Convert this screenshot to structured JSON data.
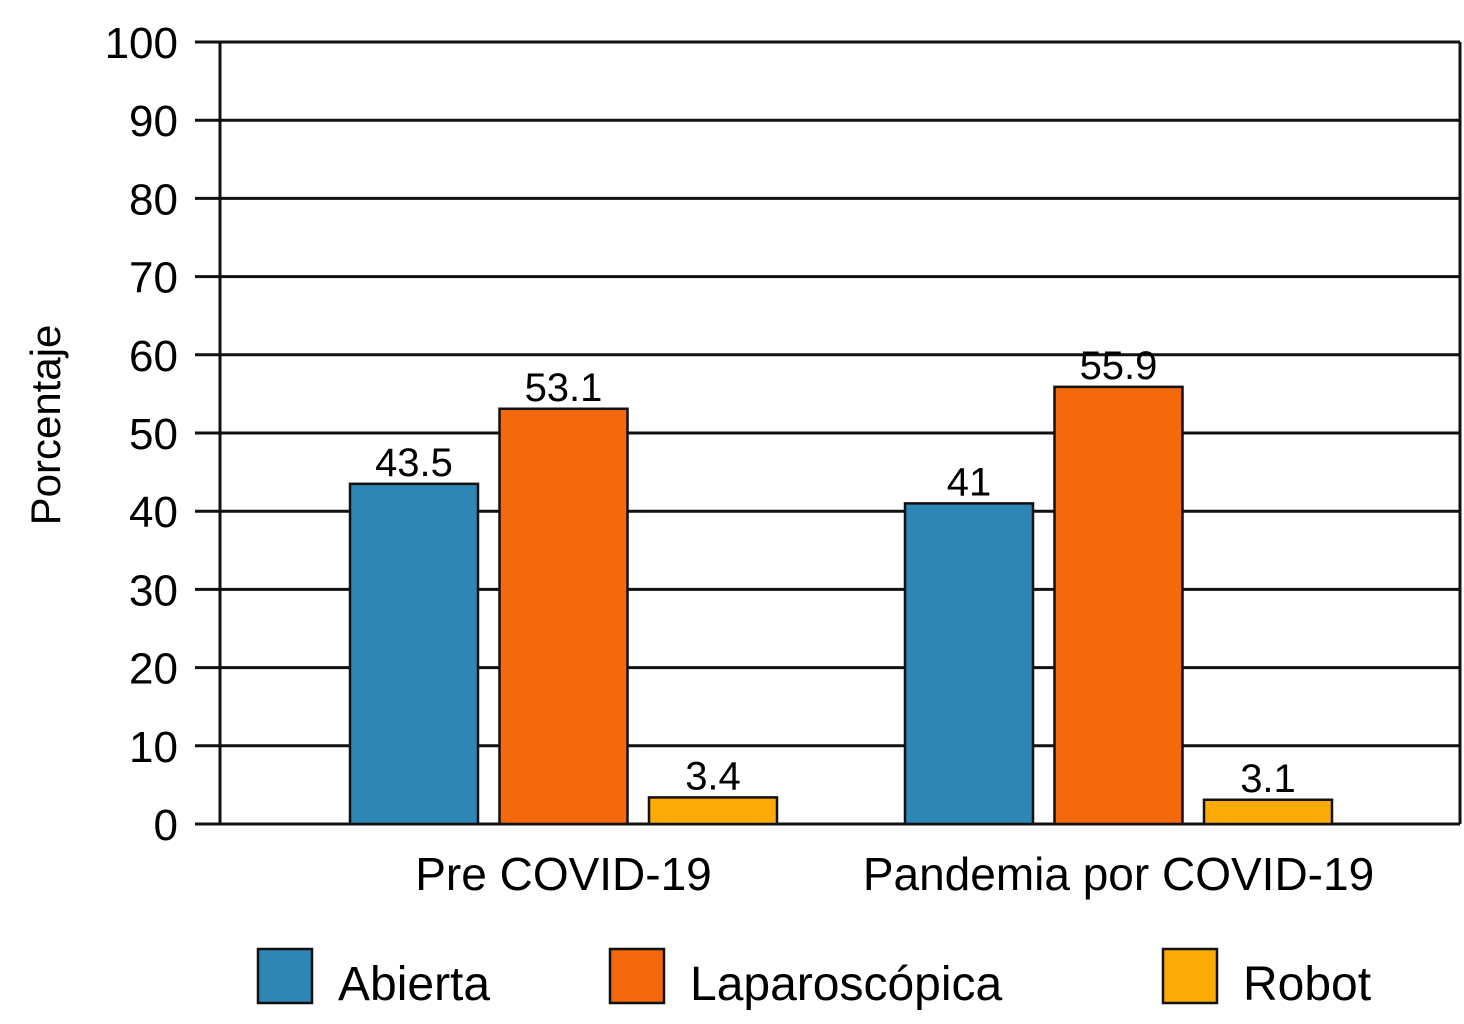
{
  "chart_data": {
    "type": "bar",
    "title": "",
    "xlabel": "",
    "ylabel": "Porcentaje",
    "ylim": [
      0,
      100
    ],
    "yticks": [
      0,
      10,
      20,
      30,
      40,
      50,
      60,
      70,
      80,
      90,
      100
    ],
    "grid": true,
    "categories": [
      "Pre COVID-19",
      "Pandemia por COVID-19"
    ],
    "series": [
      {
        "name": "Abierta",
        "color": "#2e86b5",
        "values": [
          43.5,
          41
        ],
        "labels": [
          "43.5",
          "41"
        ]
      },
      {
        "name": "Laparoscópica",
        "color": "#f5690c",
        "values": [
          53.1,
          55.9
        ],
        "labels": [
          "53.1",
          "55.9"
        ]
      },
      {
        "name": "Robot",
        "color": "#fcaa05",
        "values": [
          3.4,
          3.1
        ],
        "labels": [
          "3.4",
          "3.1"
        ]
      }
    ],
    "legend_position": "bottom"
  }
}
